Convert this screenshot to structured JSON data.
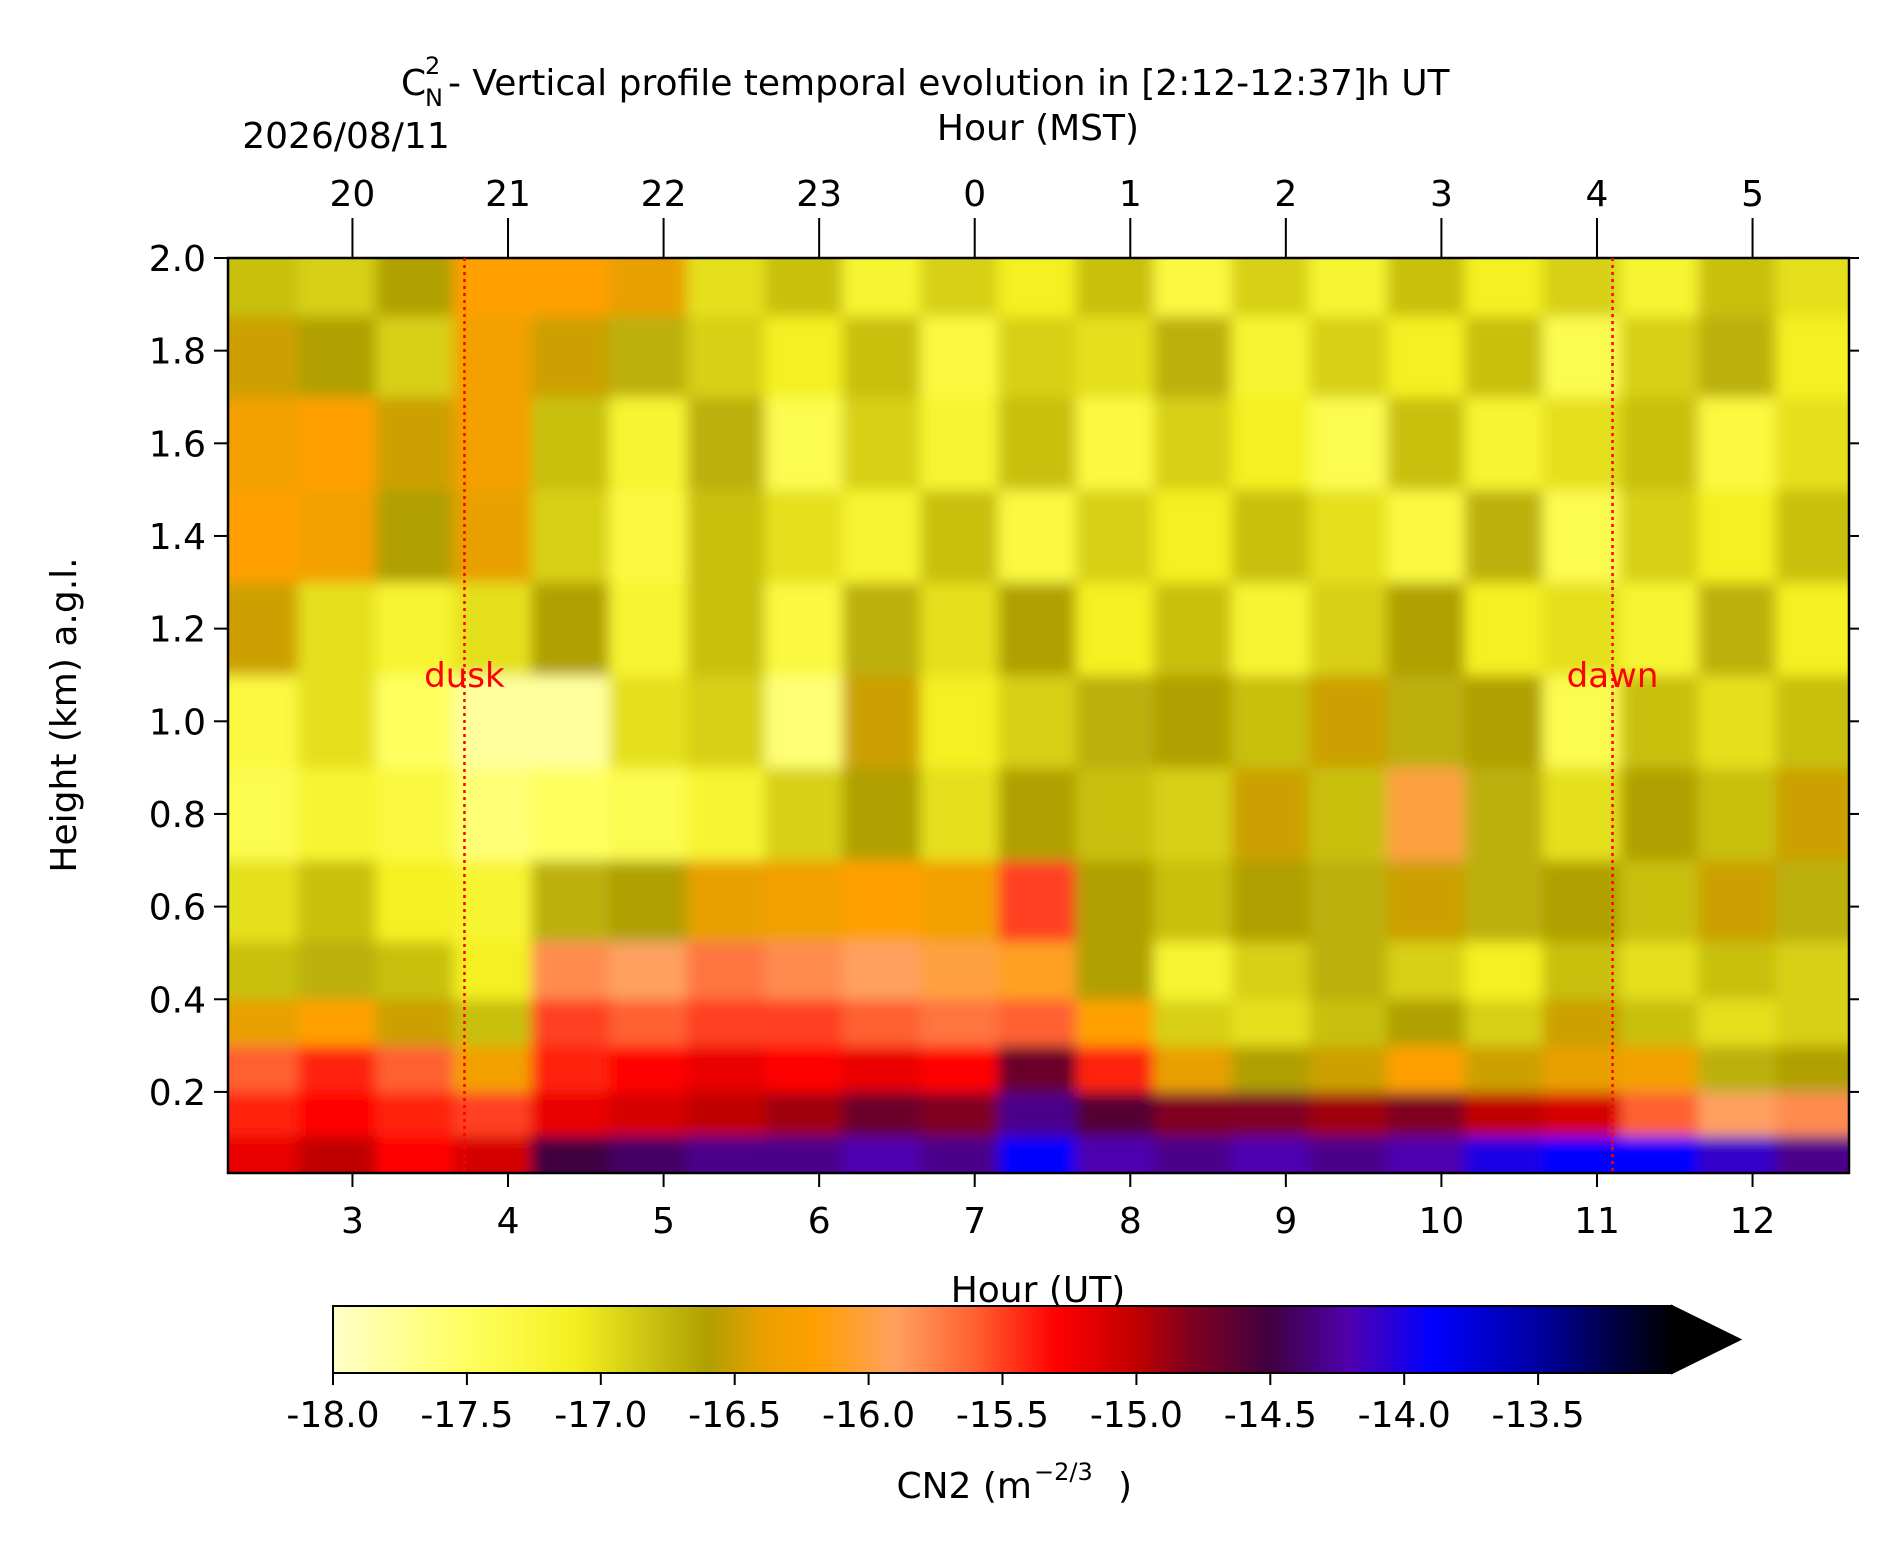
{
  "chart_data": {
    "type": "heatmap",
    "title_symbol": "C",
    "title_sup": "2",
    "title_sub": "N",
    "title": "- Vertical profile temporal evolution in [2:12-12:37]h UT",
    "date": "2026/08/11",
    "xlabel": "Hour (UT)",
    "x2label": "Hour (MST)",
    "ylabel": "Height (km) a.g.l.",
    "xlim": [
      2.2,
      12.62
    ],
    "ylim": [
      0.025,
      2.0
    ],
    "xticks": [
      3,
      4,
      5,
      6,
      7,
      8,
      9,
      10,
      11,
      12
    ],
    "x2ticks": [
      {
        "value": 3,
        "label": "20"
      },
      {
        "value": 4,
        "label": "21"
      },
      {
        "value": 5,
        "label": "22"
      },
      {
        "value": 6,
        "label": "23"
      },
      {
        "value": 7,
        "label": "0"
      },
      {
        "value": 8,
        "label": "1"
      },
      {
        "value": 9,
        "label": "2"
      },
      {
        "value": 10,
        "label": "3"
      },
      {
        "value": 11,
        "label": "4"
      },
      {
        "value": 12,
        "label": "5"
      }
    ],
    "yticks": [
      0.2,
      0.4,
      0.6,
      0.8,
      {
        "value": 1,
        "label": "1.0"
      },
      1.2,
      1.4,
      1.6,
      1.8,
      {
        "value": 2,
        "label": "2.0"
      }
    ],
    "x": [
      2.4,
      2.9,
      3.4,
      3.9,
      4.4,
      4.9,
      5.4,
      5.9,
      6.4,
      6.9,
      7.4,
      7.9,
      8.4,
      8.9,
      9.4,
      9.9,
      10.4,
      10.9,
      11.4,
      11.9,
      12.4
    ],
    "y": [
      0.06,
      0.15,
      0.25,
      0.35,
      0.45,
      0.6,
      0.8,
      1.0,
      1.2,
      1.4,
      1.6,
      1.8,
      1.95
    ],
    "z": [
      [
        -15.2,
        -15.0,
        -15.3,
        -15.1,
        -14.5,
        -14.4,
        -14.3,
        -14.3,
        -14.2,
        -14.3,
        -13.9,
        -14.2,
        -14.3,
        -14.2,
        -14.3,
        -14.2,
        -14.0,
        -13.9,
        -13.9,
        -14.1,
        -14.3
      ],
      [
        -15.4,
        -15.3,
        -15.4,
        -15.5,
        -15.2,
        -15.1,
        -15.0,
        -14.9,
        -14.7,
        -14.8,
        -14.3,
        -14.6,
        -14.8,
        -14.8,
        -14.9,
        -14.8,
        -15.0,
        -15.1,
        -15.6,
        -15.9,
        -15.8
      ],
      [
        -15.6,
        -15.4,
        -15.6,
        -16.3,
        -15.4,
        -15.3,
        -15.2,
        -15.3,
        -15.2,
        -15.3,
        -14.7,
        -15.4,
        -16.4,
        -16.6,
        -16.5,
        -16.2,
        -16.5,
        -16.4,
        -16.3,
        -16.7,
        -16.6
      ],
      [
        -16.4,
        -16.2,
        -16.5,
        -16.8,
        -15.5,
        -15.6,
        -15.5,
        -15.5,
        -15.6,
        -15.7,
        -15.6,
        -16.2,
        -16.9,
        -17.0,
        -16.8,
        -16.6,
        -16.9,
        -16.5,
        -16.8,
        -17.0,
        -16.9
      ],
      [
        -16.8,
        -16.7,
        -16.8,
        -17.1,
        -15.8,
        -15.9,
        -15.7,
        -15.8,
        -15.9,
        -16.0,
        -16.1,
        -16.6,
        -17.2,
        -16.9,
        -16.7,
        -16.9,
        -17.1,
        -16.8,
        -17.0,
        -16.8,
        -16.9
      ],
      [
        -17.0,
        -16.8,
        -17.1,
        -17.2,
        -16.7,
        -16.6,
        -16.4,
        -16.3,
        -16.2,
        -16.3,
        -15.5,
        -16.6,
        -16.8,
        -16.6,
        -16.7,
        -16.5,
        -16.7,
        -16.6,
        -16.8,
        -16.5,
        -16.7
      ],
      [
        -17.4,
        -17.2,
        -17.3,
        -17.6,
        -17.5,
        -17.4,
        -17.2,
        -16.9,
        -16.6,
        -17.0,
        -16.6,
        -16.8,
        -16.9,
        -16.5,
        -16.8,
        -16.0,
        -16.7,
        -17.0,
        -16.6,
        -16.8,
        -16.5
      ],
      [
        -17.3,
        -17.0,
        -17.5,
        -17.8,
        -17.8,
        -17.0,
        -16.9,
        -17.6,
        -16.5,
        -17.1,
        -16.9,
        -16.7,
        -16.6,
        -16.8,
        -16.5,
        -16.7,
        -16.6,
        -17.4,
        -16.8,
        -17.0,
        -16.8
      ],
      [
        -16.5,
        -17.0,
        -17.2,
        -17.0,
        -16.6,
        -17.2,
        -16.8,
        -17.3,
        -16.7,
        -17.0,
        -16.6,
        -17.1,
        -16.8,
        -17.2,
        -16.9,
        -16.6,
        -17.1,
        -17.0,
        -17.2,
        -16.7,
        -17.1
      ],
      [
        -16.2,
        -16.3,
        -16.6,
        -16.4,
        -16.9,
        -17.3,
        -16.8,
        -17.0,
        -17.2,
        -16.8,
        -17.3,
        -16.9,
        -17.1,
        -16.8,
        -17.0,
        -17.3,
        -16.7,
        -17.4,
        -16.9,
        -17.1,
        -16.8
      ],
      [
        -16.3,
        -16.2,
        -16.5,
        -16.3,
        -16.8,
        -17.2,
        -16.7,
        -17.4,
        -16.9,
        -17.2,
        -16.8,
        -17.3,
        -16.9,
        -17.1,
        -17.4,
        -16.8,
        -17.2,
        -17.0,
        -16.8,
        -17.3,
        -17.0
      ],
      [
        -16.5,
        -16.6,
        -16.9,
        -16.3,
        -16.5,
        -16.7,
        -16.9,
        -17.1,
        -16.8,
        -17.3,
        -16.9,
        -17.0,
        -16.7,
        -17.2,
        -16.9,
        -17.1,
        -16.8,
        -17.4,
        -16.9,
        -16.7,
        -17.1
      ],
      [
        -16.8,
        -16.9,
        -16.6,
        -16.2,
        -16.2,
        -16.4,
        -17.0,
        -16.8,
        -17.2,
        -16.9,
        -17.1,
        -16.8,
        -17.3,
        -16.9,
        -17.2,
        -16.8,
        -17.1,
        -16.9,
        -17.2,
        -16.8,
        -17.0
      ]
    ],
    "annotations": [
      {
        "text": "dusk",
        "x": 3.72,
        "y": 1.1,
        "color": "#ff0000"
      },
      {
        "text": "dawn",
        "x": 11.1,
        "y": 1.1,
        "color": "#ff0000"
      }
    ],
    "colorbar": {
      "label": "CN2 (m",
      "label_sup": "−2/3",
      "label_end": ")",
      "lim": [
        -18,
        -13
      ],
      "extend": "max",
      "ticks": [
        {
          "value": -18,
          "label": "-18.0"
        },
        -17.5,
        {
          "value": -17,
          "label": "-17.0"
        },
        -16.5,
        {
          "value": -16,
          "label": "-16.0"
        },
        -15.5,
        {
          "value": -15,
          "label": "-15.0"
        },
        -14.5,
        {
          "value": -14,
          "label": "-14.0"
        },
        -13.5
      ],
      "stops": [
        {
          "value": -18,
          "color": "#ffffc8"
        },
        {
          "value": -17.5,
          "color": "#ffff60"
        },
        {
          "value": -17.1,
          "color": "#f4f020"
        },
        {
          "value": -16.8,
          "color": "#c8c010"
        },
        {
          "value": -16.6,
          "color": "#b0a000"
        },
        {
          "value": -16.4,
          "color": "#e8a000"
        },
        {
          "value": -16.2,
          "color": "#ffa000"
        },
        {
          "value": -15.9,
          "color": "#ffa060"
        },
        {
          "value": -15.6,
          "color": "#ff6030"
        },
        {
          "value": -15.3,
          "color": "#ff0000"
        },
        {
          "value": -15.0,
          "color": "#c00000"
        },
        {
          "value": -14.8,
          "color": "#800020"
        },
        {
          "value": -14.5,
          "color": "#400040"
        },
        {
          "value": -14.2,
          "color": "#5000b0"
        },
        {
          "value": -13.9,
          "color": "#0000ff"
        },
        {
          "value": -13.5,
          "color": "#0000a0"
        },
        {
          "value": -13,
          "color": "#000000"
        }
      ]
    }
  }
}
